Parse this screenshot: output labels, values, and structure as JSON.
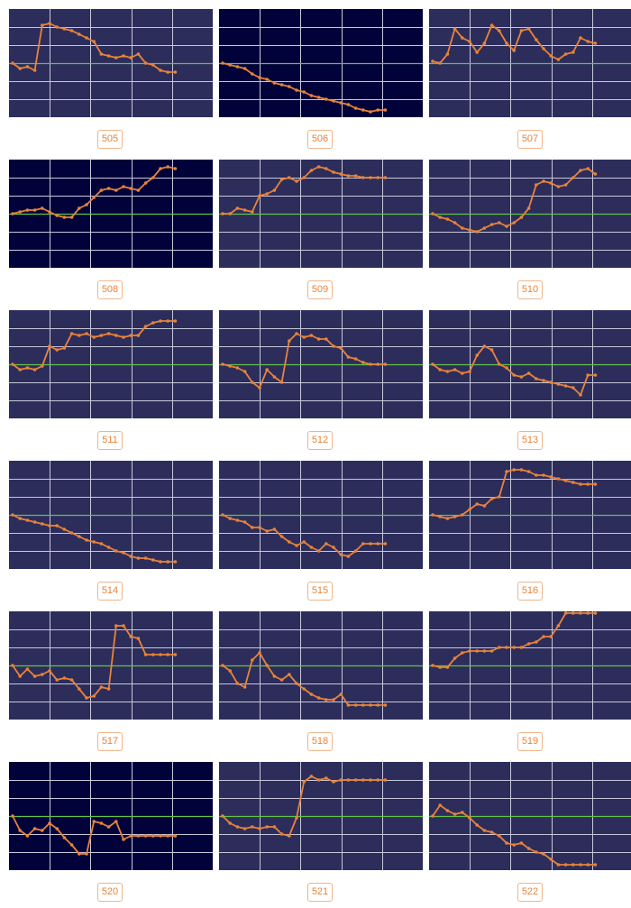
{
  "colors": {
    "plot_bg_default": "#2d2d5b",
    "plot_bg_dark": "#02023a",
    "grid_line": "#c7c7d9",
    "baseline": "#61c24a",
    "series_line": "#e8833a",
    "label_text": "#e8833a",
    "label_border": "#f0b58a"
  },
  "tiles": [
    {
      "label": "505",
      "theme": "dark"
    },
    {
      "label": "506",
      "theme": "darker"
    },
    {
      "label": "507",
      "theme": "dark"
    },
    {
      "label": "508",
      "theme": "darker"
    },
    {
      "label": "509",
      "theme": "dark"
    },
    {
      "label": "510",
      "theme": "dark"
    },
    {
      "label": "511",
      "theme": "dark"
    },
    {
      "label": "512",
      "theme": "dark"
    },
    {
      "label": "513",
      "theme": "dark"
    },
    {
      "label": "514",
      "theme": "dark"
    },
    {
      "label": "515",
      "theme": "dark"
    },
    {
      "label": "516",
      "theme": "dark"
    },
    {
      "label": "517",
      "theme": "dark"
    },
    {
      "label": "518",
      "theme": "dark"
    },
    {
      "label": "519",
      "theme": "dark"
    },
    {
      "label": "520",
      "theme": "darker"
    },
    {
      "label": "521",
      "theme": "dark"
    },
    {
      "label": "522",
      "theme": "dark"
    }
  ],
  "chart_data": [
    {
      "type": "line",
      "title": "505",
      "baseline": 0,
      "ylim": [
        -3,
        3
      ],
      "values": [
        0,
        -0.3,
        -0.2,
        -0.4,
        2.1,
        2.2,
        2.0,
        1.9,
        1.8,
        1.6,
        1.4,
        1.2,
        0.5,
        0.4,
        0.3,
        0.4,
        0.3,
        0.5,
        0.0,
        -0.1,
        -0.4,
        -0.5,
        -0.5
      ]
    },
    {
      "type": "line",
      "title": "506",
      "baseline": 0,
      "ylim": [
        -3,
        3
      ],
      "values": [
        0,
        -0.1,
        -0.2,
        -0.3,
        -0.6,
        -0.8,
        -0.9,
        -1.1,
        -1.2,
        -1.3,
        -1.5,
        -1.6,
        -1.8,
        -1.9,
        -2.0,
        -2.1,
        -2.2,
        -2.3,
        -2.5,
        -2.6,
        -2.7,
        -2.6,
        -2.6
      ]
    },
    {
      "type": "line",
      "title": "507",
      "baseline": 0,
      "ylim": [
        -3,
        3
      ],
      "values": [
        0.1,
        0.0,
        0.5,
        1.9,
        1.4,
        1.2,
        0.6,
        1.1,
        2.1,
        1.8,
        1.1,
        0.7,
        1.8,
        1.9,
        1.3,
        0.8,
        0.4,
        0.2,
        0.5,
        0.6,
        1.4,
        1.2,
        1.1
      ]
    },
    {
      "type": "line",
      "title": "508",
      "baseline": 0,
      "ylim": [
        -3,
        3
      ],
      "values": [
        0,
        0.1,
        0.2,
        0.2,
        0.3,
        0.1,
        -0.1,
        -0.2,
        -0.2,
        0.3,
        0.5,
        0.9,
        1.3,
        1.4,
        1.3,
        1.5,
        1.4,
        1.3,
        1.7,
        2.0,
        2.5,
        2.6,
        2.5
      ]
    },
    {
      "type": "line",
      "title": "509",
      "baseline": 0,
      "ylim": [
        -3,
        3
      ],
      "values": [
        0,
        0.0,
        0.3,
        0.2,
        0.1,
        1.0,
        1.1,
        1.3,
        1.9,
        2.0,
        1.8,
        2.0,
        2.4,
        2.6,
        2.5,
        2.3,
        2.2,
        2.1,
        2.1,
        2.0,
        2.0,
        2.0,
        2.0
      ]
    },
    {
      "type": "line",
      "title": "510",
      "baseline": 0,
      "ylim": [
        -3,
        3
      ],
      "values": [
        0,
        -0.2,
        -0.3,
        -0.5,
        -0.8,
        -0.9,
        -1.0,
        -0.8,
        -0.6,
        -0.5,
        -0.7,
        -0.5,
        -0.2,
        0.3,
        1.6,
        1.8,
        1.7,
        1.5,
        1.6,
        2.0,
        2.4,
        2.5,
        2.2
      ]
    },
    {
      "type": "line",
      "title": "511",
      "baseline": 0,
      "ylim": [
        -3,
        3
      ],
      "values": [
        0,
        -0.3,
        -0.2,
        -0.3,
        -0.1,
        1.0,
        0.8,
        0.9,
        1.7,
        1.6,
        1.7,
        1.5,
        1.6,
        1.7,
        1.6,
        1.5,
        1.6,
        1.6,
        2.1,
        2.3,
        2.4,
        2.4,
        2.4
      ]
    },
    {
      "type": "line",
      "title": "512",
      "baseline": 0,
      "ylim": [
        -3,
        3
      ],
      "values": [
        0,
        -0.1,
        -0.2,
        -0.4,
        -1.0,
        -1.3,
        -0.3,
        -0.7,
        -1.0,
        1.3,
        1.7,
        1.5,
        1.6,
        1.4,
        1.4,
        1.0,
        0.9,
        0.4,
        0.3,
        0.1,
        0.0,
        0.0,
        0.0
      ]
    },
    {
      "type": "line",
      "title": "513",
      "baseline": 0,
      "ylim": [
        -3,
        3
      ],
      "values": [
        0,
        -0.3,
        -0.4,
        -0.3,
        -0.5,
        -0.4,
        0.5,
        1.0,
        0.8,
        0.0,
        -0.2,
        -0.6,
        -0.7,
        -0.5,
        -0.8,
        -0.9,
        -1.0,
        -1.1,
        -1.2,
        -1.3,
        -1.7,
        -0.6,
        -0.6
      ]
    },
    {
      "type": "line",
      "title": "514",
      "baseline": 0,
      "ylim": [
        -3,
        3
      ],
      "values": [
        0,
        -0.2,
        -0.3,
        -0.4,
        -0.5,
        -0.6,
        -0.6,
        -0.8,
        -1.0,
        -1.2,
        -1.4,
        -1.5,
        -1.6,
        -1.8,
        -2.0,
        -2.1,
        -2.3,
        -2.4,
        -2.4,
        -2.5,
        -2.6,
        -2.6,
        -2.6
      ]
    },
    {
      "type": "line",
      "title": "515",
      "baseline": 0,
      "ylim": [
        -3,
        3
      ],
      "values": [
        0,
        -0.2,
        -0.3,
        -0.4,
        -0.7,
        -0.7,
        -0.9,
        -0.8,
        -1.2,
        -1.5,
        -1.7,
        -1.5,
        -1.8,
        -2.0,
        -1.6,
        -1.8,
        -2.2,
        -2.3,
        -2.0,
        -1.6,
        -1.6,
        -1.6,
        -1.6
      ]
    },
    {
      "type": "line",
      "title": "516",
      "baseline": 0,
      "ylim": [
        -3,
        3
      ],
      "values": [
        0,
        -0.1,
        -0.2,
        -0.1,
        0.0,
        0.3,
        0.6,
        0.5,
        0.9,
        1.0,
        2.4,
        2.5,
        2.5,
        2.4,
        2.2,
        2.2,
        2.1,
        2.0,
        1.9,
        1.8,
        1.7,
        1.7,
        1.7
      ]
    },
    {
      "type": "line",
      "title": "517",
      "baseline": 0,
      "ylim": [
        -3,
        3
      ],
      "values": [
        0,
        -0.6,
        -0.2,
        -0.6,
        -0.5,
        -0.3,
        -0.8,
        -0.7,
        -0.8,
        -1.3,
        -1.8,
        -1.7,
        -1.2,
        -1.3,
        2.2,
        2.2,
        1.6,
        1.5,
        0.6,
        0.6,
        0.6,
        0.6,
        0.6
      ]
    },
    {
      "type": "line",
      "title": "518",
      "baseline": 0,
      "ylim": [
        -3,
        3
      ],
      "values": [
        0,
        -0.3,
        -1.0,
        -1.2,
        0.3,
        0.7,
        0.0,
        -0.6,
        -0.8,
        -0.5,
        -1.0,
        -1.3,
        -1.6,
        -1.8,
        -1.9,
        -1.9,
        -1.6,
        -2.2,
        -2.2,
        -2.2,
        -2.2,
        -2.2,
        -2.2
      ]
    },
    {
      "type": "line",
      "title": "519",
      "baseline": 0,
      "ylim": [
        -3,
        3
      ],
      "values": [
        0,
        -0.1,
        -0.1,
        0.4,
        0.7,
        0.8,
        0.8,
        0.8,
        0.8,
        1.0,
        1.0,
        1.0,
        1.0,
        1.2,
        1.3,
        1.6,
        1.6,
        2.2,
        2.9,
        2.9,
        2.9,
        2.9,
        2.9
      ]
    },
    {
      "type": "line",
      "title": "520",
      "baseline": 0,
      "ylim": [
        -3,
        3
      ],
      "values": [
        0,
        -0.8,
        -1.1,
        -0.7,
        -0.8,
        -0.4,
        -0.7,
        -1.2,
        -1.6,
        -2.1,
        -2.1,
        -0.3,
        -0.4,
        -0.6,
        -0.3,
        -1.3,
        -1.1,
        -1.1,
        -1.1,
        -1.1,
        -1.1,
        -1.1,
        -1.1
      ]
    },
    {
      "type": "line",
      "title": "521",
      "baseline": 0,
      "ylim": [
        -3,
        3
      ],
      "values": [
        0,
        -0.4,
        -0.6,
        -0.7,
        -0.6,
        -0.7,
        -0.6,
        -0.6,
        -1.0,
        -1.1,
        -0.1,
        1.9,
        2.2,
        2.0,
        2.1,
        1.9,
        2.0,
        2.0,
        2.0,
        2.0,
        2.0,
        2.0,
        2.0
      ]
    },
    {
      "type": "line",
      "title": "522",
      "baseline": 0,
      "ylim": [
        -3,
        3
      ],
      "values": [
        0,
        0.6,
        0.3,
        0.1,
        0.2,
        -0.1,
        -0.5,
        -0.8,
        -0.9,
        -1.1,
        -1.5,
        -1.6,
        -1.5,
        -1.8,
        -2.0,
        -2.1,
        -2.4,
        -2.7,
        -2.7,
        -2.7,
        -2.7,
        -2.7,
        -2.7
      ]
    }
  ]
}
